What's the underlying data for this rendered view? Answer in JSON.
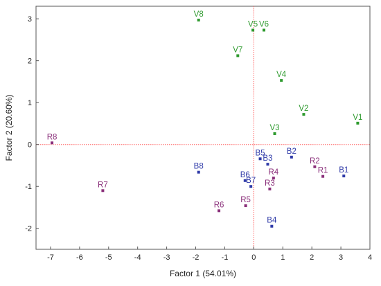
{
  "chart_data": {
    "type": "scatter",
    "xlabel": "Factor 1 (54.01%)",
    "ylabel": "Factor 2 (20.60%)",
    "xlim": [
      -7.5,
      4
    ],
    "ylim": [
      -2.5,
      3.3
    ],
    "xticks": [
      -7,
      -6,
      -5,
      -4,
      -3,
      -2,
      -1,
      0,
      1,
      2,
      3,
      4
    ],
    "yticks": [
      -2,
      -1,
      0,
      1,
      2,
      3
    ],
    "reference_lines": {
      "x": 0,
      "y": 0,
      "color": "#ff6060",
      "style": "dotted"
    },
    "grid": false,
    "series": [
      {
        "color": "#2e9a2e",
        "points": [
          {
            "label": "V8",
            "x": -1.9,
            "y": 2.97
          },
          {
            "label": "V5",
            "x": -0.03,
            "y": 2.73
          },
          {
            "label": "V6",
            "x": 0.35,
            "y": 2.73
          },
          {
            "label": "V7",
            "x": -0.55,
            "y": 2.12
          },
          {
            "label": "V4",
            "x": 0.95,
            "y": 1.53
          },
          {
            "label": "V2",
            "x": 1.72,
            "y": 0.72
          },
          {
            "label": "V1",
            "x": 3.58,
            "y": 0.51
          },
          {
            "label": "V3",
            "x": 0.72,
            "y": 0.26
          }
        ]
      },
      {
        "color": "#2f3aa8",
        "points": [
          {
            "label": "B5",
            "x": 0.22,
            "y": -0.34
          },
          {
            "label": "B3",
            "x": 0.48,
            "y": -0.47
          },
          {
            "label": "B2",
            "x": 1.3,
            "y": -0.3
          },
          {
            "label": "B1",
            "x": 3.1,
            "y": -0.75
          },
          {
            "label": "B8",
            "x": -1.9,
            "y": -0.66
          },
          {
            "label": "B6",
            "x": -0.3,
            "y": -0.86
          },
          {
            "label": "B7",
            "x": -0.1,
            "y": -1.0
          },
          {
            "label": "B4",
            "x": 0.62,
            "y": -1.95
          }
        ]
      },
      {
        "color": "#8a2f7a",
        "points": [
          {
            "label": "R8",
            "x": -6.95,
            "y": 0.04
          },
          {
            "label": "R7",
            "x": -5.2,
            "y": -1.1
          },
          {
            "label": "R6",
            "x": -1.2,
            "y": -1.58
          },
          {
            "label": "R5",
            "x": -0.28,
            "y": -1.46
          },
          {
            "label": "R4",
            "x": 0.68,
            "y": -0.8
          },
          {
            "label": "R3",
            "x": 0.55,
            "y": -1.06
          },
          {
            "label": "R2",
            "x": 2.1,
            "y": -0.53
          },
          {
            "label": "R1",
            "x": 2.38,
            "y": -0.76
          }
        ]
      }
    ]
  }
}
